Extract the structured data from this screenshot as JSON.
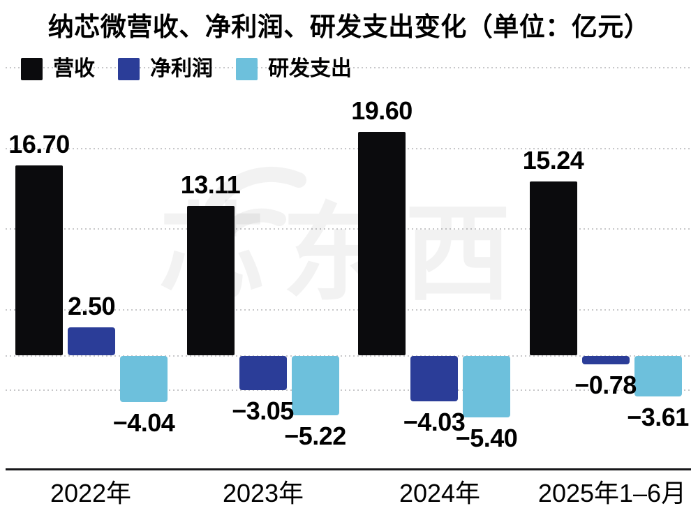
{
  "title": "纳芯微营收、净利润、研发支出变化（单位：亿元）",
  "legend": {
    "items": [
      {
        "label": "营收",
        "color": "#0b0b0d"
      },
      {
        "label": "净利润",
        "color": "#2b3d98"
      },
      {
        "label": "研发支出",
        "color": "#6dc0dc"
      }
    ]
  },
  "watermark_text": "芯东西",
  "colors": {
    "revenue": "#0b0b0d",
    "net_profit": "#2b3d98",
    "rd_spend": "#6dc0dc",
    "gridline": "#c7c7c9",
    "axis_line": "#17171a"
  },
  "chart_data": {
    "type": "bar",
    "title": "纳芯微营收、净利润、研发支出变化（单位：亿元）",
    "unit": "亿元",
    "categories": [
      "2022年",
      "2023年",
      "2024年",
      "2025年1–6月"
    ],
    "series": [
      {
        "key": "revenue",
        "name": "营收",
        "color": "#0b0b0d",
        "values": [
          16.7,
          13.11,
          19.6,
          15.24
        ],
        "labels": [
          "16.70",
          "13.11",
          "19.60",
          "15.24"
        ]
      },
      {
        "key": "net-profit",
        "name": "净利润",
        "color": "#2b3d98",
        "values": [
          2.5,
          -3.05,
          -4.03,
          -0.78
        ],
        "labels": [
          "2.50",
          "−3.05",
          "−4.03",
          "−0.78"
        ]
      },
      {
        "key": "rd-spend",
        "name": "研发支出",
        "color": "#6dc0dc",
        "values": [
          -4.04,
          -5.22,
          -5.4,
          -3.61
        ],
        "labels": [
          "−4.04",
          "−5.22",
          "−5.40",
          "−3.61"
        ]
      }
    ],
    "ylim": [
      -10,
      26
    ],
    "baseline_value": 0,
    "grid": "dotted-horizontal",
    "legend_position": "top-left",
    "value_labels_shown": true,
    "y_axis_labels_shown": false
  }
}
